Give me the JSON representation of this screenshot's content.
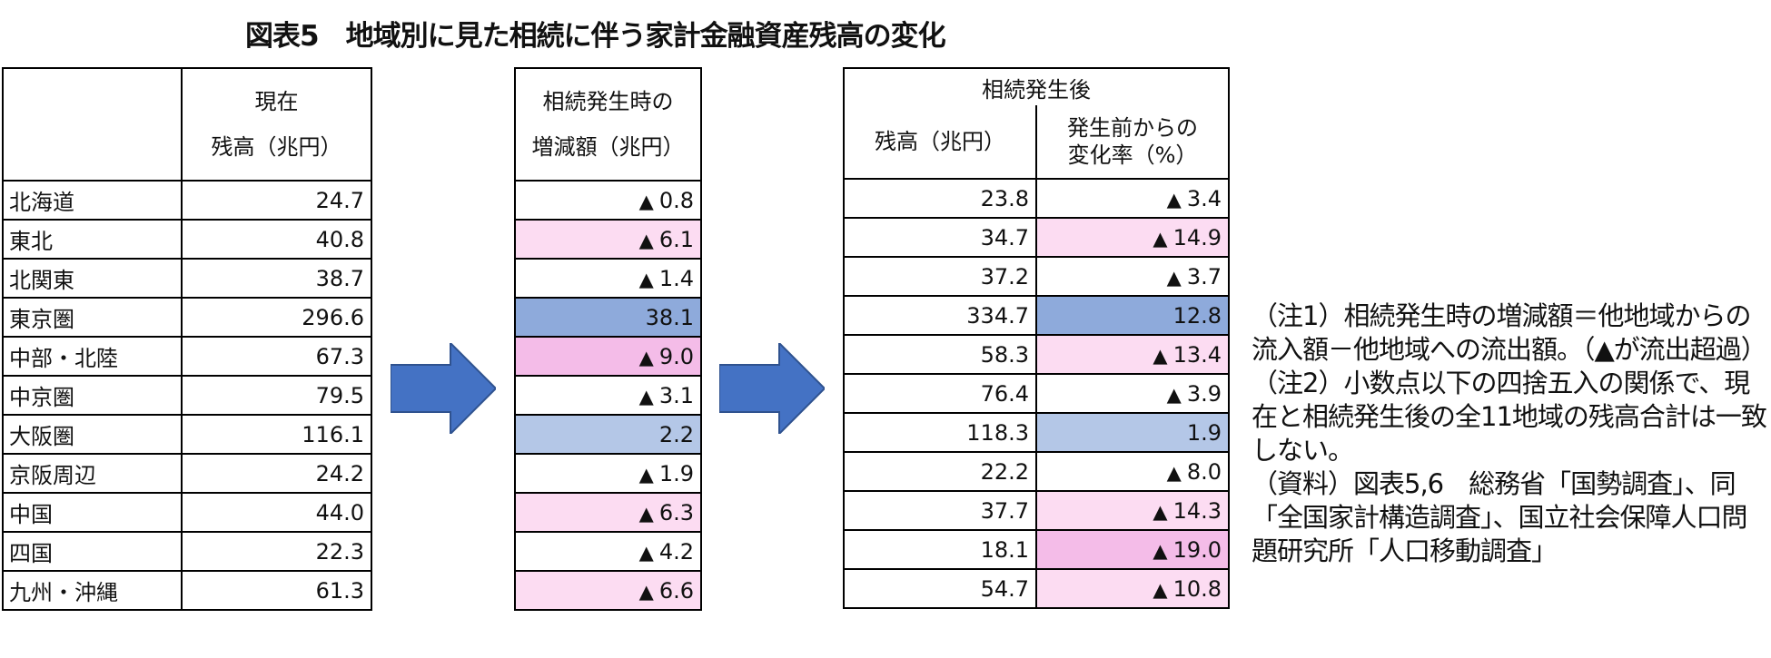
{
  "title": "図表5　地域別に見た相続に伴う家計金融資産残高の変化",
  "table_current": {
    "header_top": "現在",
    "header_sub": "残高（兆円）",
    "rows": [
      {
        "region": "北海道",
        "balance": "24.7"
      },
      {
        "region": "東北",
        "balance": "40.8"
      },
      {
        "region": "北関東",
        "balance": "38.7"
      },
      {
        "region": "東京圏",
        "balance": "296.6"
      },
      {
        "region": "中部・北陸",
        "balance": "67.3"
      },
      {
        "region": "中京圏",
        "balance": "79.5"
      },
      {
        "region": "大阪圏",
        "balance": "116.1"
      },
      {
        "region": "京阪周辺",
        "balance": "24.2"
      },
      {
        "region": "中国",
        "balance": "44.0"
      },
      {
        "region": "四国",
        "balance": "22.3"
      },
      {
        "region": "九州・沖縄",
        "balance": "61.3"
      }
    ]
  },
  "table_change": {
    "header_top": "相続発生時の",
    "header_sub": "増減額（兆円）",
    "rows": [
      {
        "sign": "▲",
        "value": "0.8",
        "color": "#ffffff"
      },
      {
        "sign": "▲",
        "value": "6.1",
        "color": "#fcdcf2"
      },
      {
        "sign": "▲",
        "value": "1.4",
        "color": "#ffffff"
      },
      {
        "sign": "",
        "value": "38.1",
        "color": "#8eaadb"
      },
      {
        "sign": "▲",
        "value": "9.0",
        "color": "#f4bce8"
      },
      {
        "sign": "▲",
        "value": "3.1",
        "color": "#ffffff"
      },
      {
        "sign": "",
        "value": "2.2",
        "color": "#b4c7e7"
      },
      {
        "sign": "▲",
        "value": "1.9",
        "color": "#ffffff"
      },
      {
        "sign": "▲",
        "value": "6.3",
        "color": "#fcdcf2"
      },
      {
        "sign": "▲",
        "value": "4.2",
        "color": "#ffffff"
      },
      {
        "sign": "▲",
        "value": "6.6",
        "color": "#fcdcf2"
      }
    ]
  },
  "table_after": {
    "header_top": "相続発生後",
    "header_sub1": "残高（兆円）",
    "header_sub2_line1": "発生前からの",
    "header_sub2_line2": "変化率（%）",
    "rows": [
      {
        "balance": "23.8",
        "sign": "▲",
        "rate": "3.4",
        "color": "#ffffff"
      },
      {
        "balance": "34.7",
        "sign": "▲",
        "rate": "14.9",
        "color": "#fcdcf2"
      },
      {
        "balance": "37.2",
        "sign": "▲",
        "rate": "3.7",
        "color": "#ffffff"
      },
      {
        "balance": "334.7",
        "sign": "",
        "rate": "12.8",
        "color": "#8eaadb"
      },
      {
        "balance": "58.3",
        "sign": "▲",
        "rate": "13.4",
        "color": "#fcdcf2"
      },
      {
        "balance": "76.4",
        "sign": "▲",
        "rate": "3.9",
        "color": "#ffffff"
      },
      {
        "balance": "118.3",
        "sign": "",
        "rate": "1.9",
        "color": "#b4c7e7"
      },
      {
        "balance": "22.2",
        "sign": "▲",
        "rate": "8.0",
        "color": "#ffffff"
      },
      {
        "balance": "37.7",
        "sign": "▲",
        "rate": "14.3",
        "color": "#fcdcf2"
      },
      {
        "balance": "18.1",
        "sign": "▲",
        "rate": "19.0",
        "color": "#f4bce8"
      },
      {
        "balance": "54.7",
        "sign": "▲",
        "rate": "10.8",
        "color": "#fcdcf2"
      }
    ]
  },
  "arrow_color": "#4472c4",
  "notes": [
    "（注1）相続発生時の増減額＝他地域からの流入額－他地域への流出額。（▲が流出超過）",
    "（注2）小数点以下の四捨五入の関係で、現在と相続発生後の全11地域の残高合計は一致しない。",
    "（資料）図表5,6　総務省「国勢調査」、同「全国家計構造調査」、国立社会保障人口問題研究所「人口移動調査」"
  ]
}
